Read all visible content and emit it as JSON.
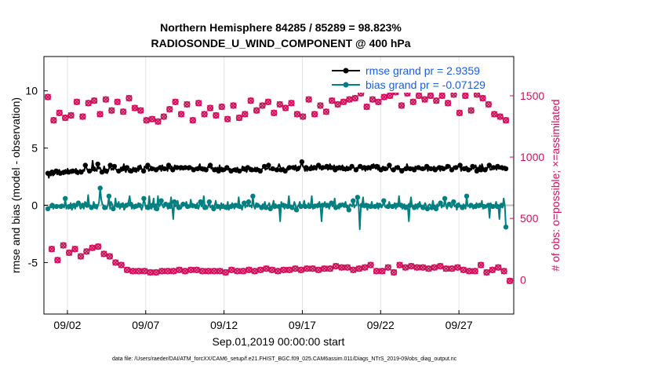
{
  "chart_data": {
    "type": "line",
    "title_line1": "Northern Hemisphere 84285 / 85289 = 98.823%",
    "title_line2": "RADIOSONDE_U_WIND_COMPONENT @ 400 hPa",
    "xlabel": "Sep.01,2019 00:00:00 start",
    "ylabel_left": "rmse and bias (model - observation)",
    "ylabel_right": "# of obs: o=possible; ×=assimilated",
    "footer": "data file: /Users/raeder/DAI/ATM_forcXX/CAM6_setup/f.e21.FHIST_BGC.f09_025.CAM6assim.011/Diags_NTrS_2019-09/obs_diag_output.nc",
    "xlim": [
      0.5,
      30.5
    ],
    "ylim_left": [
      -9.5,
      13
    ],
    "ylim_right": [
      -280,
      1820
    ],
    "x_ticks": [
      2,
      7,
      12,
      17,
      22,
      27
    ],
    "x_tick_labels": [
      "09/02",
      "09/07",
      "09/12",
      "09/17",
      "09/22",
      "09/27"
    ],
    "y_ticks_left": [
      -5,
      0,
      5,
      10
    ],
    "y_tick_labels_left": [
      "-5",
      "0",
      "5",
      "10"
    ],
    "y_ticks_right": [
      0,
      500,
      1000,
      1500
    ],
    "y_tick_labels_right": [
      "0",
      "500",
      "1000",
      "1500"
    ],
    "x_start": 0.75,
    "x_step": 0.25,
    "series": [
      {
        "name": "rmse grand pr = 2.9359",
        "color": "#000000",
        "axis": "left",
        "values": [
          2.8,
          2.4,
          2.9,
          2.6,
          2.9,
          2.6,
          2.7,
          2.8,
          3.0,
          2.7,
          2.9,
          3.1,
          2.8,
          2.9,
          3.0,
          2.7,
          2.9,
          3.1,
          2.8,
          3.2,
          2.9,
          2.9,
          3.1,
          2.8,
          3.0,
          2.9,
          3.0,
          3.2,
          2.9,
          2.7,
          2.9,
          3.1,
          2.9,
          3.0,
          3.1,
          3.0,
          3.5,
          3.3,
          3.1,
          3.1,
          3.0,
          2.9,
          3.0,
          3.9,
          3.2,
          3.0,
          3.1,
          3.0,
          3.6,
          3.2,
          3.3,
          3.1,
          2.9,
          2.9,
          3.4,
          3.1,
          3.0,
          2.8,
          3.0,
          3.3,
          3.5,
          3.1,
          3.2,
          3.1,
          3.4,
          3.2,
          3.1,
          3.0,
          3.0,
          2.9,
          3.3,
          3.0,
          3.2,
          3.6,
          3.1,
          2.9,
          3.3,
          3.1,
          2.9,
          3.2,
          3.0,
          3.1,
          3.3,
          3.0,
          3.1,
          2.9,
          3.2,
          3.0,
          3.3,
          3.5,
          3.2,
          3.1,
          3.0,
          3.4,
          3.3,
          3.2,
          3.5,
          3.0,
          3.1,
          3.4,
          3.2,
          3.2,
          3.3,
          3.1,
          3.1,
          3.3,
          3.1,
          3.4,
          3.3,
          3.0,
          3.5,
          3.2,
          3.2,
          3.1,
          3.3,
          3.0,
          3.5,
          3.2,
          3.2,
          3.4,
          3.1,
          3.3,
          3.5,
          3.2,
          3.3,
          3.2,
          3.4,
          3.1,
          3.3,
          3.3,
          3.1,
          3.2,
          3.3,
          3.4,
          3.2,
          3.1,
          3.3,
          3.2,
          3.3,
          3.3,
          3.1,
          3.2,
          3.3,
          3.2,
          3.2,
          3.4,
          3.6,
          3.1,
          3.2,
          3.0,
          3.3,
          3.3,
          3.1,
          3.2,
          3.4,
          3.3,
          3.5,
          3.2,
          3.3,
          3.1,
          3.1,
          3.3,
          3.1,
          3.3,
          3.0,
          3.5,
          3.1,
          3.3,
          3.1,
          3.2,
          3.0,
          3.1,
          3.3,
          3.1,
          3.2,
          3.2,
          3.0,
          3.1,
          3.2,
          3.0,
          3.1,
          2.9,
          3.3,
          3.1,
          3.0,
          3.1,
          3.0,
          3.4,
          3.2,
          3.0,
          3.1,
          2.9,
          3.3,
          3.3,
          3.0,
          3.3,
          3.1,
          3.1,
          3.0,
          3.3,
          3.1,
          3.3,
          3.2,
          3.2,
          3.0,
          3.1,
          3.2,
          3.3,
          3.4,
          3.1,
          3.2,
          3.2,
          3.5,
          3.1,
          3.1,
          3.3,
          3.2,
          3.3,
          3.1,
          3.0,
          3.1,
          3.3,
          3.6,
          3.4,
          3.1,
          3.2,
          3.3,
          3.2,
          3.0,
          3.1,
          3.3,
          3.1,
          3.3,
          3.2,
          3.4,
          3.2,
          3.3,
          3.1,
          3.5,
          3.0,
          3.2,
          3.4,
          3.2,
          3.5,
          3.8,
          3.4,
          3.3,
          3.0,
          3.3,
          3.0,
          3.3,
          3.1,
          3.2,
          3.5,
          3.1,
          3.1,
          3.3,
          3.2,
          3.1,
          3.4,
          3.5,
          3.2,
          3.3,
          3.1,
          3.3,
          3.4,
          3.3,
          3.2,
          3.4,
          3.1,
          3.2,
          3.6,
          3.3,
          3.4,
          3.2,
          3.5,
          3.1,
          3.4,
          3.3,
          3.1,
          3.3,
          3.1,
          3.3,
          3.5,
          3.2,
          3.2,
          3.0,
          3.4,
          3.2,
          3.3,
          3.2,
          3.1,
          3.4,
          3.3,
          3.3,
          3.2,
          3.1,
          3.3,
          3.2,
          3.5,
          3.4,
          3.3,
          3.1,
          3.2,
          3.3,
          3.0,
          3.3,
          3.1,
          3.3,
          3.2,
          3.1,
          3.3,
          3.4,
          3.6,
          3.3,
          3.2,
          3.4,
          3.1,
          3.5,
          3.2,
          3.1,
          3.3,
          3.4,
          3.1,
          3.2,
          3.2,
          3.1,
          3.3,
          3.5,
          3.3,
          3.1,
          3.0,
          3.1,
          3.2,
          3.4,
          3.2,
          3.3,
          3.2,
          3.1,
          3.2,
          3.0,
          3.2,
          3.1,
          3.3,
          3.2,
          3.6,
          3.3,
          3.3,
          3.2,
          3.2,
          3.3,
          3.3,
          3.1,
          3.4,
          3.2,
          3.4,
          3.3,
          3.2,
          3.1,
          3.1,
          3.2,
          3.1,
          3.1,
          3.2,
          3.4,
          3.0,
          3.4,
          3.1,
          3.2,
          3.3,
          3.2,
          3.4,
          3.1,
          3.3,
          3.1,
          3.4,
          3.3,
          3.0,
          3.4,
          3.4,
          3.2,
          3.2,
          3.3,
          3.2,
          3.4,
          3.3,
          3.5,
          3.2,
          3.1,
          3.2,
          3.4,
          3.3,
          3.3,
          3.2,
          3.4,
          3.4,
          3.5,
          3.0,
          3.3,
          3.1,
          3.2,
          3.3,
          3.4,
          3.3,
          3.1,
          3.2,
          3.2,
          3.1,
          3.4,
          3.2,
          3.3,
          3.5,
          3.0,
          3.3,
          3.2,
          3.5,
          3.1,
          3.6,
          3.3,
          3.2,
          3.1,
          3.3,
          3.2,
          3.4,
          3.5,
          3.1,
          3.1,
          3.2,
          3.3,
          3.3,
          3.4,
          3.1,
          3.4,
          3.2,
          3.2,
          3.3,
          3.3,
          3.1,
          3.2,
          3.4,
          3.2
        ]
      },
      {
        "name": "bias grand pr = -0.07129",
        "color": "#008080",
        "axis": "left",
        "values": [
          -0.3,
          -0.3,
          -0.1,
          -0.2,
          0.0,
          -0.3,
          -0.1,
          0.0,
          -0.1,
          0.0,
          0.0,
          -0.2,
          -0.1,
          0.1,
          0.0,
          -0.2,
          0.6,
          -0.3,
          0.0,
          -0.3,
          -0.1,
          0.2,
          -0.4,
          -0.2,
          0.0,
          -0.3,
          0.0,
          -0.1,
          0.2,
          0.0,
          -0.3,
          -0.2,
          0.0,
          -0.3,
          0.3,
          0.2,
          0.0,
          0.9,
          0.0,
          0.0,
          -0.2,
          -0.3,
          0.3,
          0.0,
          -0.1,
          -0.3,
          0.0,
          0.3,
          1.5,
          0.5,
          0.1,
          0.0,
          -0.2,
          -0.1,
          -0.3,
          0.0,
          0.8,
          -0.3,
          0.3,
          0.1,
          -0.3,
          -0.3,
          0.6,
          -0.1,
          0.0,
          0.3,
          -0.3,
          -0.1,
          0.0,
          0.2,
          -0.4,
          -0.2,
          0.0,
          0.1,
          0.3,
          0.8,
          0.1,
          -0.3,
          0.0,
          -0.3,
          -0.1,
          0.1,
          -0.2,
          0.2,
          0.0,
          -0.1,
          -0.4,
          -0.1,
          0.6,
          0.2,
          -0.3,
          0.0,
          -0.2,
          0.8,
          -0.1,
          -0.3,
          0.0,
          0.6,
          -0.4,
          0.1,
          -0.3,
          0.8,
          -0.1,
          0.0,
          0.4,
          0.0,
          -0.2,
          -0.1,
          0.1,
          0.0,
          -0.3,
          0.2,
          -0.1,
          0.7,
          -0.1,
          -1.2,
          0.3,
          -0.1,
          0.0,
          0.4,
          -0.2,
          0.0,
          -0.3,
          -0.1,
          0.1,
          0.0,
          0.0,
          0.3,
          -0.1,
          0.0,
          -0.2,
          0.5,
          0.0,
          -0.2,
          0.1,
          0.0,
          -0.1,
          0.2,
          -0.3,
          0.0,
          0.3,
          -0.1,
          0.0,
          0.8,
          -0.2,
          0.0,
          -0.3,
          -0.1,
          0.3,
          -0.2,
          -0.1,
          0.0,
          -0.3,
          0.0,
          0.4,
          -0.2,
          -0.1,
          0.0,
          -0.4,
          0.2,
          -0.1,
          0.1,
          -0.3,
          0.0,
          -0.2,
          0.3,
          -0.4,
          0.0,
          -0.1,
          0.2,
          0.0,
          -0.3,
          0.0,
          0.1,
          -0.2,
          0.7,
          -0.1,
          0.0,
          -0.4,
          0.0,
          0.2,
          -0.2,
          0.0,
          -0.1,
          0.3,
          -0.1,
          0.0,
          -0.2,
          0.8,
          -0.1,
          -0.3,
          0.2,
          0.0,
          -0.1,
          0.0,
          -0.3,
          -0.2,
          0.1,
          0.0,
          0.3,
          -0.2,
          -0.1,
          0.0,
          0.2,
          -0.3,
          -0.1,
          0.0,
          0.4,
          -0.1,
          0.1,
          -0.2,
          0.0,
          -0.1,
          -1.4,
          0.3,
          -0.1,
          0.0,
          -0.3,
          0.1,
          0.0,
          -0.1,
          0.8,
          -0.2,
          0.0,
          -0.2,
          -0.1,
          0.3,
          0.0,
          -0.4,
          -0.1,
          0.0,
          0.3,
          -0.1,
          -0.2,
          0.0,
          0.4,
          -0.1,
          0.0,
          -0.2,
          0.2,
          -0.1,
          0.0,
          0.8,
          -0.3,
          -0.1,
          0.1,
          0.0,
          -0.2,
          0.0,
          0.3,
          -0.1,
          -1.4,
          0.0,
          -0.1,
          0.3,
          -0.2,
          0.0,
          0.1,
          -0.3,
          0.0,
          0.2,
          -0.1,
          0.0,
          0.6,
          -0.2,
          -0.1,
          0.0,
          -0.3,
          0.0,
          -0.1,
          0.2,
          -0.1,
          0.0,
          0.3,
          -0.2,
          0.0,
          -0.4,
          0.1,
          0.0,
          -0.1,
          0.4,
          -0.2,
          0.0,
          0.0,
          0.7,
          0.0,
          -2.1,
          -0.1,
          0.0,
          0.7,
          -0.2,
          -0.1,
          0.0,
          -0.4,
          0.1,
          0.0,
          -0.1,
          0.3,
          -0.2,
          0.0,
          -0.1,
          0.0,
          0.2,
          -0.3,
          0.0,
          0.1,
          -0.2,
          0.0,
          0.4,
          -0.1,
          -0.2,
          0.0,
          -0.1,
          0.3,
          0.0,
          -0.2,
          -0.1,
          0.0,
          0.2,
          -0.3,
          0.0,
          -0.1,
          0.8,
          -0.1,
          0.0,
          -0.3,
          0.0,
          0.1,
          -0.2,
          0.0,
          -0.1,
          -1.4,
          0.0,
          0.7,
          -0.1,
          0.0,
          -0.2,
          0.1,
          0.0,
          -0.3,
          0.0,
          0.3,
          -0.1,
          0.0,
          -0.2,
          0.0,
          0.2,
          -0.1,
          -0.3,
          0.0,
          0.1,
          0.0,
          -0.2,
          0.4,
          -0.1,
          0.0,
          -0.3,
          0.1,
          -0.1,
          0.0,
          0.2,
          -0.2,
          0.0,
          -0.1,
          0.6,
          0.0,
          -0.3,
          0.0,
          0.1,
          -0.1,
          -0.2,
          0.0,
          0.3,
          -0.1,
          0.0,
          -0.4,
          0.0,
          0.2,
          -0.1,
          0.0,
          -0.2,
          0.1,
          0.0,
          -0.3,
          0.8,
          -0.1,
          0.0,
          -0.2,
          0.0,
          0.1,
          -0.3,
          0.0,
          -0.1,
          0.2,
          0.0,
          -0.2,
          0.0,
          -0.1,
          0.4,
          -0.3,
          -0.1,
          0.0,
          -0.2,
          0.1,
          0.0,
          -1.1,
          0.2,
          0.0,
          -0.1,
          -0.2,
          0.0,
          0.3,
          -0.1,
          0.0,
          -1.2,
          0.1,
          0.0,
          -0.2,
          0.6,
          0.0,
          -1.9
        ]
      },
      {
        "name": "possible obs",
        "color": "#d0105a",
        "axis": "right",
        "style": "marker-o",
        "values": [
          1490,
          1300,
          1360,
          1320,
          1340,
          1450,
          1330,
          1440,
          1460,
          1350,
          1470,
          1380,
          1450,
          1370,
          1480,
          1400,
          1380,
          1300,
          1310,
          1290,
          1330,
          1390,
          1450,
          1350,
          1430,
          1300,
          1440,
          1350,
          1400,
          1340,
          1410,
          1310,
          1420,
          1320,
          1350,
          1460,
          1380,
          1420,
          1450,
          1360,
          1430,
          1400,
          1440,
          1350,
          1330,
          1470,
          1350,
          1420,
          1370,
          1460,
          1430,
          1450,
          1470,
          1480,
          1520,
          1410,
          1470,
          1450,
          1490,
          1500,
          1530,
          1420,
          1520,
          1450,
          1500,
          1470,
          1500,
          1460,
          1500,
          1440,
          1510,
          1360,
          1500,
          1380,
          1510,
          1480,
          1430,
          1350,
          1330,
          1300
        ]
      },
      {
        "name": "assimilated obs",
        "color": "#d0105a",
        "axis": "right",
        "style": "marker-x",
        "values": [
          250,
          160,
          280,
          220,
          250,
          190,
          230,
          260,
          270,
          210,
          190,
          140,
          120,
          80,
          70,
          70,
          70,
          60,
          60,
          70,
          70,
          70,
          80,
          70,
          80,
          80,
          70,
          70,
          70,
          70,
          60,
          80,
          70,
          70,
          80,
          70,
          80,
          90,
          80,
          70,
          80,
          80,
          90,
          80,
          90,
          90,
          80,
          90,
          90,
          110,
          100,
          100,
          80,
          90,
          100,
          120,
          70,
          70,
          100,
          60,
          120,
          100,
          110,
          100,
          100,
          90,
          100,
          110,
          90,
          90,
          100,
          80,
          70,
          70,
          120,
          60,
          80,
          100,
          70,
          -10
        ]
      }
    ],
    "legend_position": "top-right"
  }
}
